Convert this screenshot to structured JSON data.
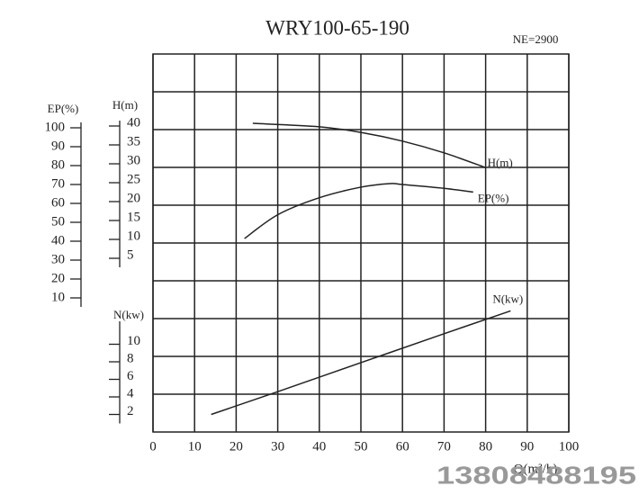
{
  "chart_data": {
    "type": "line",
    "title": "WRY100-65-190",
    "annotation": "NE=2900",
    "xlabel": "Q(m³/h)",
    "watermark": "13808488195",
    "xlim": [
      0,
      100
    ],
    "xticks": [
      0,
      10,
      20,
      30,
      40,
      50,
      60,
      70,
      80,
      90,
      100
    ],
    "grid": true,
    "ylabel": "EP(%)",
    "ylim": [
      0,
      100
    ],
    "yticks": [
      10,
      20,
      30,
      40,
      50,
      60,
      70,
      80,
      90,
      100
    ],
    "y2label": "H(m)",
    "y2lim": [
      0,
      40
    ],
    "y2ticks": [
      5,
      10,
      15,
      20,
      25,
      30,
      35,
      40
    ],
    "y3label": "N(kw)",
    "y3lim": [
      0,
      12
    ],
    "y3ticks": [
      2,
      4,
      6,
      8,
      10
    ],
    "series": [
      {
        "name": "H(m)",
        "color": "#222222",
        "axis": "y2",
        "x": [
          24,
          40,
          50,
          60,
          70,
          80
        ],
        "values": [
          40.7,
          39.8,
          38.3,
          36,
          32.9,
          29
        ]
      },
      {
        "name": "EP(%)",
        "color": "#222222",
        "axis": "y",
        "x": [
          22,
          30,
          40,
          50,
          57,
          60,
          70,
          77
        ],
        "values": [
          41.4,
          54,
          63,
          68.6,
          70.5,
          70,
          68,
          66
        ]
      },
      {
        "name": "N(kw)",
        "color": "#222222",
        "axis": "y3",
        "x": [
          14,
          30,
          50,
          70,
          86
        ],
        "values": [
          2.0,
          4.6,
          7.9,
          11.2,
          13.8
        ]
      }
    ]
  }
}
